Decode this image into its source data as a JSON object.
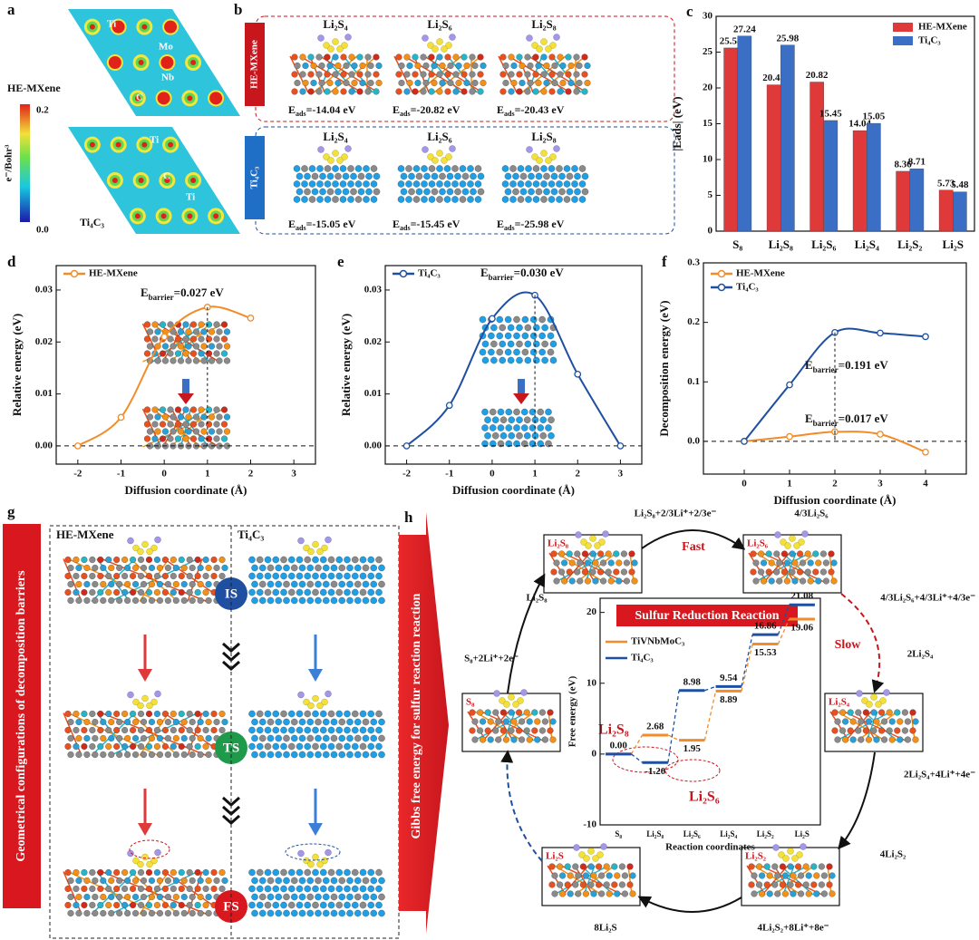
{
  "figure": {
    "a": {
      "label": "a",
      "top": "HE-MXene",
      "bottom": "Ti₄C₃",
      "scale_max": "0.2",
      "scale_min": "0.0",
      "scale_unit": "e⁻/Bohr³",
      "atoms_top": [
        "Ti",
        "Mo",
        "Nb",
        "C"
      ],
      "atoms_bottom": [
        "Ti",
        "C",
        "C",
        "Ti"
      ]
    },
    "b": {
      "label": "b",
      "top": "HE-MXene",
      "bottom": "Ti₄C₃",
      "species": [
        "Li₂S₄",
        "Li₂S₆",
        "Li₂S₈"
      ],
      "symbol": "E",
      "sub": "ads",
      "top_eads": [
        "=-14.04 eV",
        "=-20.82 eV",
        "=-20.43 eV"
      ],
      "bottom_eads": [
        "=-15.05 eV",
        "=-15.45 eV",
        "=-25.98 eV"
      ]
    },
    "g": {
      "label": "g",
      "caption": "Geometrical configurations of decomposition barriers",
      "left": "HE-MXene",
      "right": "Ti₄C₃",
      "states": [
        "IS",
        "TS",
        "FS"
      ]
    },
    "h": {
      "label": "h",
      "caption": "Gibbs free energy for sulfur reaction reaction",
      "title": "Sulfur Reduction Reaction",
      "fast": "Fast",
      "slow": "Slow",
      "nodes": [
        "Li₂S₈",
        "Li₂S₆",
        "S₈",
        "Li₂S₄",
        "Li₂S",
        "Li₂S₂"
      ],
      "reactions": [
        "Li₂S₈+2/3Li⁺+2/3e⁻",
        "4/3Li₂S₆",
        "4/3Li₂S₆+4/3Li⁺+4/3e⁻",
        "2Li₂S₄",
        "2Li₂S₄+4Li⁺+4e⁻",
        "4Li₂S₂",
        "4Li₂S₂+8Li⁺+8e⁻",
        "8Li₂S",
        "S₈+2Li⁺+2e⁻",
        "Li₂S₈"
      ],
      "inset_notes": [
        "Li₂S₈",
        "Li₂S₆"
      ]
    }
  },
  "chart_data": [
    {
      "type": "bar",
      "label": "c",
      "ylabel": "|Eads| (eV)",
      "categories": [
        "S₈",
        "Li₂S₈",
        "Li₂S₆",
        "Li₂S₄",
        "Li₂S₂",
        "Li₂S"
      ],
      "series": [
        {
          "name": "HE-MXene",
          "color": "#e0393a",
          "values": [
            25.58,
            20.43,
            20.82,
            14.04,
            8.36,
            5.73
          ]
        },
        {
          "name": "Ti₄C₃",
          "color": "#3b6fc6",
          "values": [
            27.24,
            25.98,
            15.45,
            15.05,
            8.71,
            5.48
          ]
        }
      ],
      "ylim": [
        0,
        30
      ],
      "yticks": [
        0,
        5,
        10,
        15,
        20,
        25,
        30
      ],
      "legend": "upper right"
    },
    {
      "type": "line",
      "label": "d",
      "xlabel": "Diffusion coordinate (Å)",
      "ylabel": "Relative energy (eV)",
      "x": [
        -2,
        -1,
        0,
        1,
        2
      ],
      "series": [
        {
          "name": "HE-MXene",
          "color": "#f28c28",
          "values": [
            0,
            0.0055,
            0.021,
            0.0267,
            0.0246
          ]
        }
      ],
      "xlim": [
        -2.5,
        3.5
      ],
      "xticks": [
        -2,
        -1,
        0,
        1,
        2,
        3
      ],
      "ylim": [
        -0.0035,
        0.0347
      ],
      "yticks": [
        {
          "value": 0,
          "label": "0.00"
        },
        {
          "value": 0.01,
          "label": "0.01"
        },
        {
          "value": 0.02,
          "label": "0.02"
        },
        {
          "value": 0.03,
          "label": "0.03"
        }
      ],
      "annotations": [
        {
          "symbol": "E",
          "sub": "barrier",
          "text": "=0.027 eV"
        }
      ],
      "legend": "upper left"
    },
    {
      "type": "line",
      "label": "e",
      "xlabel": "Diffusion coordinate (Å)",
      "ylabel": "Relative energy (eV)",
      "x": [
        -2,
        -1,
        0,
        1,
        2,
        3
      ],
      "series": [
        {
          "name": "Ti₄C₃",
          "color": "#1f4fa0",
          "values": [
            0,
            0.0078,
            0.0245,
            0.029,
            0.0138,
            0
          ]
        }
      ],
      "xlim": [
        -2.5,
        3.5
      ],
      "xticks": [
        -2,
        -1,
        0,
        1,
        2,
        3
      ],
      "ylim": [
        -0.0035,
        0.0347
      ],
      "yticks": [
        {
          "value": 0,
          "label": "0.00"
        },
        {
          "value": 0.01,
          "label": "0.01"
        },
        {
          "value": 0.02,
          "label": "0.02"
        },
        {
          "value": 0.03,
          "label": "0.03"
        }
      ],
      "annotations": [
        {
          "symbol": "E",
          "sub": "barrier",
          "text": "=0.030 eV"
        }
      ],
      "legend": "upper left"
    },
    {
      "type": "line",
      "label": "f",
      "xlabel": "Diffusion coordinate (Å)",
      "ylabel": "Decomposition energy (eV)",
      "x": [
        0,
        1,
        2,
        3,
        4
      ],
      "series": [
        {
          "name": "HE-MXene",
          "color": "#f28c28",
          "values": [
            0,
            0.008,
            0.016,
            0.012,
            -0.018
          ]
        },
        {
          "name": "Ti₄C₃",
          "color": "#1f4fa0",
          "values": [
            0,
            0.095,
            0.183,
            0.182,
            0.176
          ]
        }
      ],
      "xlim": [
        -0.9,
        4.9
      ],
      "xticks": [
        0,
        1,
        2,
        3,
        4
      ],
      "ylim": [
        -0.055,
        0.3
      ],
      "yticks": [
        {
          "value": 0,
          "label": "0.0"
        },
        {
          "value": 0.1,
          "label": "0.1"
        },
        {
          "value": 0.2,
          "label": "0.2"
        },
        {
          "value": 0.3,
          "label": "0.3"
        }
      ],
      "annotations": [
        {
          "symbol": "E",
          "sub": "barrier",
          "text": "=0.191 eV"
        },
        {
          "symbol": "E",
          "sub": "barrier",
          "text": "=0.017 eV"
        }
      ],
      "legend": "upper left"
    },
    {
      "type": "level",
      "xlabel": "Reaction coordinates",
      "ylabel": "Free energy (eV)",
      "categories": [
        "S₈",
        "Li₂S₈",
        "Li₂S₆",
        "Li₂S₄",
        "Li₂S₂",
        "Li₂S"
      ],
      "series": [
        {
          "name": "TiVNbMoC₃",
          "color": "#f28c28",
          "values": [
            0,
            2.68,
            1.95,
            8.89,
            15.53,
            19.06
          ],
          "value_labels": [
            "0.00",
            "2.68",
            "1.95",
            "8.89",
            "15.53",
            "19.06"
          ]
        },
        {
          "name": "Ti₄C₃",
          "color": "#1f4fa0",
          "values": [
            0,
            -1.2,
            8.98,
            9.54,
            16.86,
            21.08
          ],
          "value_labels": [
            null,
            "-1.20",
            "8.98",
            "9.54",
            "16.86",
            "21.08"
          ]
        }
      ],
      "ylim": [
        -10,
        22
      ],
      "yticks": [
        -10,
        0,
        10,
        20
      ],
      "legend": "upper left"
    }
  ]
}
